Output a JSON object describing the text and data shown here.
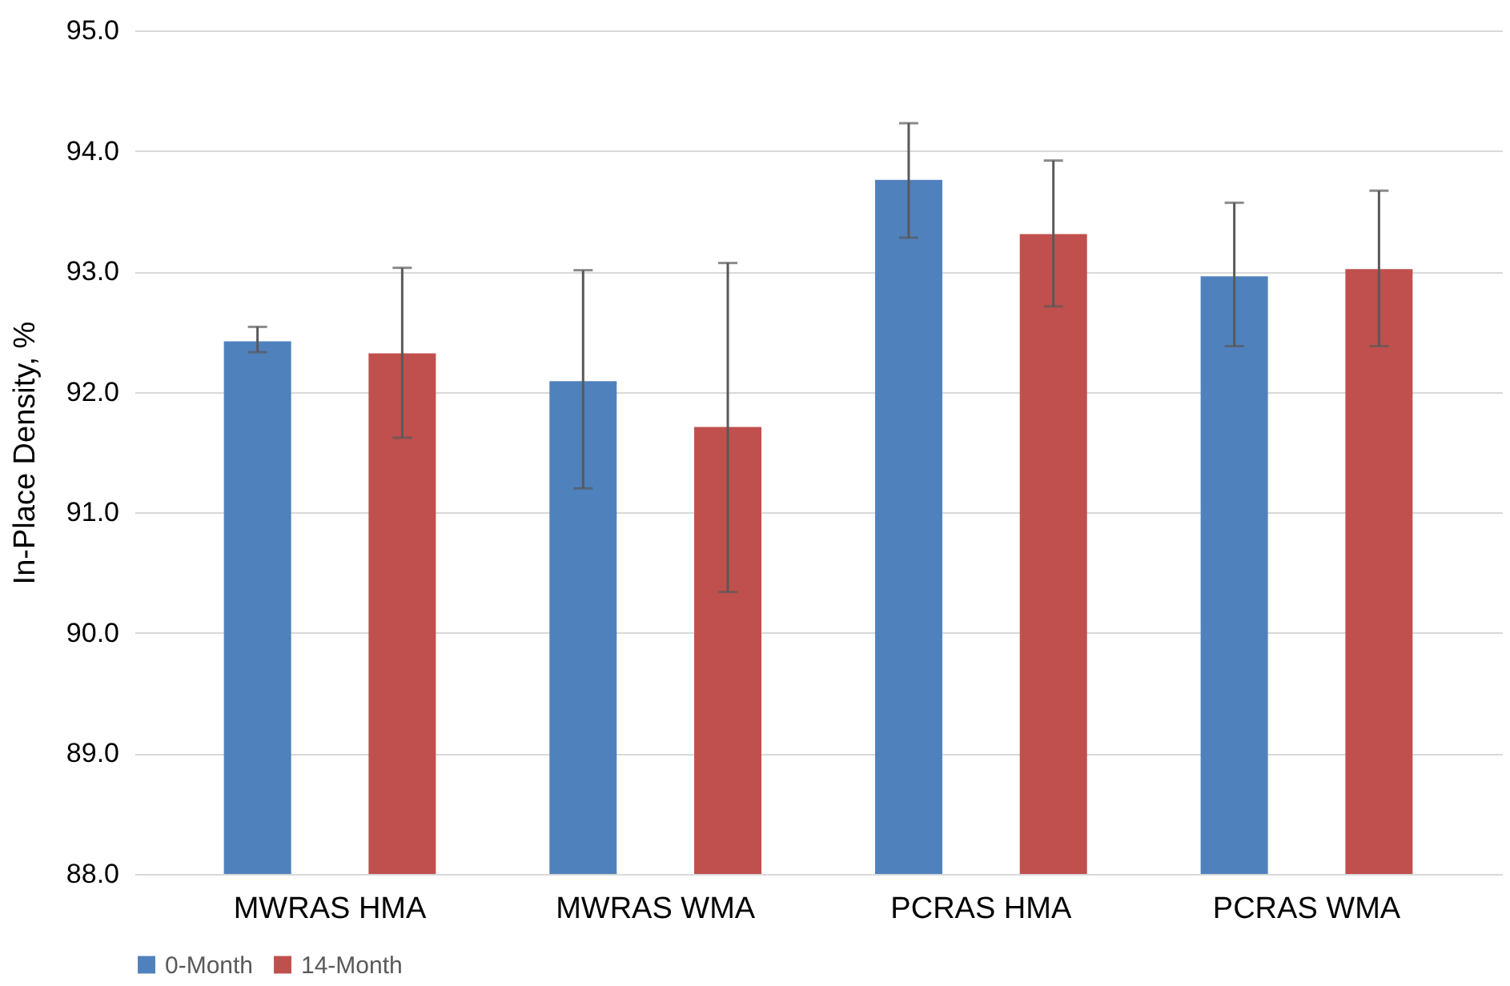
{
  "chart_data": {
    "type": "bar",
    "ylabel": "In-Place Density, %",
    "categories": [
      "MWRAS HMA",
      "MWRAS WMA",
      "PCRAS HMA",
      "PCRAS WMA"
    ],
    "series": [
      {
        "name": "0-Month",
        "color": "#4f81bd",
        "values": [
          92.42,
          92.09,
          93.76,
          92.96
        ],
        "errors": [
          [
            92.33,
            92.54
          ],
          [
            91.2,
            93.01
          ],
          [
            93.28,
            94.23
          ],
          [
            92.38,
            93.57
          ]
        ]
      },
      {
        "name": "14-Month",
        "color": "#c0504d",
        "values": [
          92.32,
          91.71,
          93.31,
          93.02
        ],
        "errors": [
          [
            91.62,
            93.03
          ],
          [
            90.34,
            93.07
          ],
          [
            92.71,
            93.92
          ],
          [
            92.38,
            93.67
          ]
        ]
      }
    ],
    "ylim": [
      88,
      95
    ],
    "yticks": [
      {
        "value": 88,
        "label": "88.0"
      },
      {
        "value": 89,
        "label": "89.0"
      },
      {
        "value": 90,
        "label": "90.0"
      },
      {
        "value": 91,
        "label": "91.0"
      },
      {
        "value": 92,
        "label": "92.0"
      },
      {
        "value": 93,
        "label": "93.0"
      },
      {
        "value": 94,
        "label": "94.0"
      },
      {
        "value": 95,
        "label": "95.0"
      }
    ],
    "grid": "y",
    "legend": "bottom"
  }
}
